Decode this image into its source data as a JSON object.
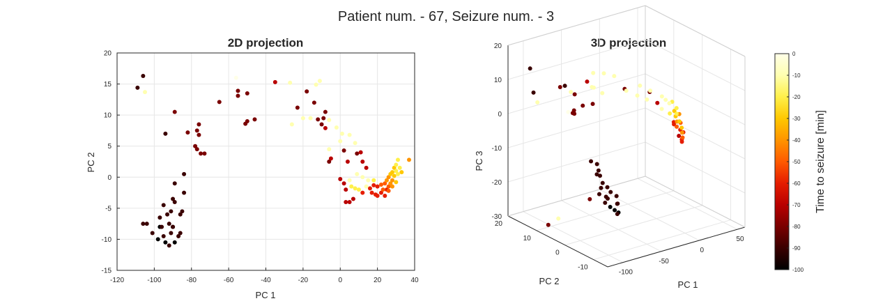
{
  "figure": {
    "suptitle": "Patient num. - 67, Seizure num. - 3"
  },
  "colormap": [
    "#000000",
    "#3a0000",
    "#7a0000",
    "#b90000",
    "#e51d00",
    "#ff5a00",
    "#ff9400",
    "#ffc800",
    "#fff04a",
    "#ffffb0",
    "#ffffe8"
  ],
  "chart_data": [
    {
      "type": "scatter",
      "title": "2D projection",
      "xlabel": "PC 1",
      "ylabel": "PC 2",
      "xlim": [
        -120,
        40
      ],
      "ylim": [
        -15,
        20
      ],
      "xticks": [
        -120,
        -100,
        -80,
        -60,
        -40,
        -20,
        0,
        20,
        40
      ],
      "yticks": [
        -15,
        -10,
        -5,
        0,
        5,
        10,
        15,
        20
      ],
      "grid": true,
      "color_by": "time_to_seizure",
      "points": [
        {
          "x": -106,
          "y": 16.3,
          "c": -90
        },
        {
          "x": -109,
          "y": 14.4,
          "c": -88
        },
        {
          "x": -105,
          "y": 13.7,
          "c": -8
        },
        {
          "x": -89,
          "y": 10.5,
          "c": -85
        },
        {
          "x": -94,
          "y": 7,
          "c": -90
        },
        {
          "x": -82,
          "y": 7.2,
          "c": -85
        },
        {
          "x": -76,
          "y": 8.5,
          "c": -80
        },
        {
          "x": -77,
          "y": 7.5,
          "c": -82
        },
        {
          "x": -76,
          "y": 6.8,
          "c": -84
        },
        {
          "x": -78,
          "y": 5,
          "c": -80
        },
        {
          "x": -77,
          "y": 4.5,
          "c": -83
        },
        {
          "x": -75,
          "y": 3.8,
          "c": -80
        },
        {
          "x": -73,
          "y": 3.8,
          "c": -82
        },
        {
          "x": -65,
          "y": 12.1,
          "c": -78
        },
        {
          "x": -56,
          "y": 16,
          "c": -5
        },
        {
          "x": -55,
          "y": 13.9,
          "c": -80
        },
        {
          "x": -55,
          "y": 13.1,
          "c": -82
        },
        {
          "x": -50,
          "y": 13.5,
          "c": -80
        },
        {
          "x": -51,
          "y": 8.6,
          "c": -85
        },
        {
          "x": -50,
          "y": 9,
          "c": -84
        },
        {
          "x": -46,
          "y": 9.3,
          "c": -80
        },
        {
          "x": -35,
          "y": 15.3,
          "c": -75
        },
        {
          "x": -27,
          "y": 15.2,
          "c": -12
        },
        {
          "x": -26,
          "y": 8.5,
          "c": -10
        },
        {
          "x": -23,
          "y": 11.2,
          "c": -76
        },
        {
          "x": -20,
          "y": 9.5,
          "c": -8
        },
        {
          "x": -18,
          "y": 13.8,
          "c": -80
        },
        {
          "x": -16,
          "y": 9.5,
          "c": -12
        },
        {
          "x": -13,
          "y": 14.9,
          "c": -10
        },
        {
          "x": -11,
          "y": 15.5,
          "c": -8
        },
        {
          "x": -14,
          "y": 12,
          "c": -78
        },
        {
          "x": -12,
          "y": 9.3,
          "c": -80
        },
        {
          "x": -10,
          "y": 8.5,
          "c": -78
        },
        {
          "x": -9,
          "y": 9.5,
          "c": -80
        },
        {
          "x": -8,
          "y": 10.5,
          "c": -76
        },
        {
          "x": -6,
          "y": 9.2,
          "c": -12
        },
        {
          "x": -2,
          "y": 8,
          "c": -10
        },
        {
          "x": 1,
          "y": 7,
          "c": -14
        },
        {
          "x": -8,
          "y": 7.9,
          "c": -75
        },
        {
          "x": -6,
          "y": 4.5,
          "c": -10
        },
        {
          "x": 0,
          "y": 5.8,
          "c": -12
        },
        {
          "x": 2,
          "y": 4.3,
          "c": -78
        },
        {
          "x": 5,
          "y": 6.8,
          "c": -12
        },
        {
          "x": 8,
          "y": 5.5,
          "c": -14
        },
        {
          "x": 9,
          "y": 3.8,
          "c": -76
        },
        {
          "x": -5,
          "y": 3,
          "c": -74
        },
        {
          "x": -6,
          "y": 2.5,
          "c": -80
        },
        {
          "x": 4,
          "y": 2.5,
          "c": -75
        },
        {
          "x": 11,
          "y": 4,
          "c": -70
        },
        {
          "x": 12,
          "y": 2.5,
          "c": -72
        },
        {
          "x": 14,
          "y": 1.5,
          "c": -74
        },
        {
          "x": -101,
          "y": -9,
          "c": -95
        },
        {
          "x": -98,
          "y": -10,
          "c": -96
        },
        {
          "x": -96,
          "y": -8,
          "c": -95
        },
        {
          "x": -95,
          "y": -9.5,
          "c": -94
        },
        {
          "x": -94,
          "y": -10.5,
          "c": -96
        },
        {
          "x": -92,
          "y": -11,
          "c": -95
        },
        {
          "x": -91,
          "y": -9,
          "c": -93
        },
        {
          "x": -90,
          "y": -8,
          "c": -95
        },
        {
          "x": -89,
          "y": -10.5,
          "c": -96
        },
        {
          "x": -87,
          "y": -9.5,
          "c": -94
        },
        {
          "x": -86,
          "y": -9,
          "c": -95
        },
        {
          "x": -97,
          "y": -6.5,
          "c": -92
        },
        {
          "x": -93,
          "y": -6,
          "c": -93
        },
        {
          "x": -91,
          "y": -5.5,
          "c": -92
        },
        {
          "x": -89,
          "y": -4,
          "c": -90
        },
        {
          "x": -86,
          "y": -6,
          "c": -94
        },
        {
          "x": -85,
          "y": -5.5,
          "c": -93
        },
        {
          "x": -84,
          "y": -2.5,
          "c": -90
        },
        {
          "x": -84,
          "y": 0.5,
          "c": -88
        },
        {
          "x": -89,
          "y": -1,
          "c": -92
        },
        {
          "x": -90,
          "y": -3.5,
          "c": -91
        },
        {
          "x": -95,
          "y": -4.5,
          "c": -92
        },
        {
          "x": -104,
          "y": -7.5,
          "c": -92
        },
        {
          "x": -106,
          "y": -7.5,
          "c": -90
        },
        {
          "x": -97,
          "y": -8,
          "c": -96
        },
        {
          "x": -92,
          "y": -7.5,
          "c": -95
        },
        {
          "x": -90,
          "y": -8,
          "c": -96
        },
        {
          "x": 0,
          "y": -0.3,
          "c": -72
        },
        {
          "x": 2,
          "y": -1,
          "c": -68
        },
        {
          "x": 3,
          "y": -2,
          "c": -70
        },
        {
          "x": 3,
          "y": -4,
          "c": -75
        },
        {
          "x": 5,
          "y": -4,
          "c": -72
        },
        {
          "x": 7,
          "y": -3.5,
          "c": -70
        },
        {
          "x": 5,
          "y": -0.5,
          "c": -15
        },
        {
          "x": 6,
          "y": -1.5,
          "c": -20
        },
        {
          "x": 8,
          "y": -1.8,
          "c": -18
        },
        {
          "x": 10,
          "y": -2,
          "c": -22
        },
        {
          "x": 12,
          "y": -2.5,
          "c": -65
        },
        {
          "x": 14,
          "y": -1.5,
          "c": -15
        },
        {
          "x": 16,
          "y": -1.8,
          "c": -60
        },
        {
          "x": 17,
          "y": -2.5,
          "c": -62
        },
        {
          "x": 19,
          "y": -2.8,
          "c": -65
        },
        {
          "x": 20,
          "y": -3,
          "c": -60
        },
        {
          "x": 22,
          "y": -2.5,
          "c": -58
        },
        {
          "x": 23,
          "y": -2,
          "c": -55
        },
        {
          "x": 24,
          "y": -3,
          "c": -62
        },
        {
          "x": 25,
          "y": -2,
          "c": -58
        },
        {
          "x": 26,
          "y": -1.5,
          "c": -50
        },
        {
          "x": 27,
          "y": -1,
          "c": -45
        },
        {
          "x": 28,
          "y": -0.5,
          "c": -40
        },
        {
          "x": 29,
          "y": 0.2,
          "c": -30
        },
        {
          "x": 30,
          "y": 1,
          "c": -25
        },
        {
          "x": 30,
          "y": 2,
          "c": -22
        },
        {
          "x": 31,
          "y": 2.8,
          "c": -25
        },
        {
          "x": 29,
          "y": 1.5,
          "c": -28
        },
        {
          "x": 28,
          "y": 0.8,
          "c": -32
        },
        {
          "x": 27,
          "y": 0.5,
          "c": -35
        },
        {
          "x": 26,
          "y": 0,
          "c": -38
        },
        {
          "x": 25,
          "y": -0.5,
          "c": -42
        },
        {
          "x": 24,
          "y": -1,
          "c": -48
        },
        {
          "x": 22,
          "y": -1.2,
          "c": -52
        },
        {
          "x": 20,
          "y": -1.5,
          "c": -56
        },
        {
          "x": 18,
          "y": -1.3,
          "c": -58
        },
        {
          "x": 31,
          "y": 0.5,
          "c": -24
        },
        {
          "x": 32,
          "y": 1.5,
          "c": -20
        },
        {
          "x": 33,
          "y": 0.8,
          "c": -30
        },
        {
          "x": 37,
          "y": 2.8,
          "c": -45
        },
        {
          "x": 30,
          "y": -0.8,
          "c": -35
        },
        {
          "x": 28,
          "y": -1.5,
          "c": -40
        },
        {
          "x": 26,
          "y": -2.2,
          "c": -50
        },
        {
          "x": 9,
          "y": 0.5,
          "c": -10
        },
        {
          "x": 12,
          "y": 0,
          "c": -12
        },
        {
          "x": 15,
          "y": -0.5,
          "c": -14
        },
        {
          "x": 18,
          "y": -0.5,
          "c": -20
        }
      ]
    },
    {
      "type": "scatter3d",
      "title": "3D projection",
      "xlabel": "PC 1",
      "ylabel": "PC 2",
      "zlabel": "PC 3",
      "xlim": [
        -120,
        60
      ],
      "ylim": [
        -15,
        20
      ],
      "zlim": [
        -30,
        20
      ],
      "xticks": [
        -100,
        -50,
        0,
        50
      ],
      "yticks": [
        -10,
        0,
        10,
        20
      ],
      "zticks": [
        -30,
        -20,
        -10,
        0,
        10,
        20
      ],
      "grid": true,
      "color_by": "time_to_seizure",
      "points": [
        {
          "x": -106,
          "y": 16,
          "z": 14,
          "c": -90
        },
        {
          "x": -109,
          "y": 14,
          "z": 8,
          "c": -88
        },
        {
          "x": -105,
          "y": 13.7,
          "z": 5,
          "c": -8
        },
        {
          "x": -89,
          "y": 10,
          "z": 10,
          "c": -85
        },
        {
          "x": -94,
          "y": 7,
          "z": 12,
          "c": -90
        },
        {
          "x": -82,
          "y": 7,
          "z": 4,
          "c": -85
        },
        {
          "x": -76,
          "y": 8.5,
          "z": 2,
          "c": -80
        },
        {
          "x": -78,
          "y": 5,
          "z": 6,
          "c": -80
        },
        {
          "x": -65,
          "y": 12,
          "z": 0,
          "c": -78
        },
        {
          "x": -56,
          "y": 16,
          "z": -2,
          "c": -5
        },
        {
          "x": -55,
          "y": 14,
          "z": 4,
          "c": -80
        },
        {
          "x": -50,
          "y": 9,
          "z": 3,
          "c": -85
        },
        {
          "x": -35,
          "y": 15,
          "z": 6,
          "c": -75
        },
        {
          "x": -27,
          "y": 15,
          "z": 8,
          "c": -12
        },
        {
          "x": -20,
          "y": 9.5,
          "z": 9,
          "c": -8
        },
        {
          "x": -13,
          "y": 15,
          "z": 7,
          "c": -10
        },
        {
          "x": -10,
          "y": 8.5,
          "z": 5,
          "c": -78
        },
        {
          "x": -6,
          "y": 9,
          "z": 4,
          "c": -12
        },
        {
          "x": 1,
          "y": 7,
          "z": 3,
          "c": -14
        },
        {
          "x": 8,
          "y": 5.5,
          "z": 2,
          "c": -14
        },
        {
          "x": -60,
          "y": 14,
          "z": 5,
          "c": -12
        },
        {
          "x": -45,
          "y": 10,
          "z": 7,
          "c": -10
        },
        {
          "x": -40,
          "y": 12,
          "z": 6,
          "c": -8
        },
        {
          "x": -30,
          "y": 11,
          "z": 4,
          "c": -15
        },
        {
          "x": -101,
          "y": -9,
          "z": -15,
          "c": -95
        },
        {
          "x": -98,
          "y": -10,
          "z": -16,
          "c": -96
        },
        {
          "x": -96,
          "y": -8,
          "z": -14,
          "c": -95
        },
        {
          "x": -94,
          "y": -10.5,
          "z": -17,
          "c": -96
        },
        {
          "x": -92,
          "y": -11,
          "z": -15,
          "c": -95
        },
        {
          "x": -90,
          "y": -8,
          "z": -13,
          "c": -95
        },
        {
          "x": -89,
          "y": -10.5,
          "z": -18,
          "c": -96
        },
        {
          "x": -87,
          "y": -9.5,
          "z": -16,
          "c": -94
        },
        {
          "x": -86,
          "y": -9,
          "z": -14,
          "c": -95
        },
        {
          "x": -97,
          "y": -6.5,
          "z": -12,
          "c": -92
        },
        {
          "x": -93,
          "y": -6,
          "z": -11,
          "c": -93
        },
        {
          "x": -89,
          "y": -4,
          "z": -10,
          "c": -90
        },
        {
          "x": -85,
          "y": -5.5,
          "z": -13,
          "c": -93
        },
        {
          "x": -84,
          "y": 0.5,
          "z": -8,
          "c": -88
        },
        {
          "x": -104,
          "y": -7.5,
          "z": -6,
          "c": -92
        },
        {
          "x": -106,
          "y": -7.5,
          "z": -4,
          "c": -90
        },
        {
          "x": -92,
          "y": -7.5,
          "z": -15,
          "c": -95
        },
        {
          "x": -95,
          "y": -4.5,
          "z": -9,
          "c": -92
        },
        {
          "x": -110,
          "y": 5,
          "z": -25,
          "c": -10
        },
        {
          "x": -112,
          "y": 8,
          "z": -28,
          "c": -85
        },
        {
          "x": -80,
          "y": 2,
          "z": -20,
          "c": -85
        },
        {
          "x": -70,
          "y": -5,
          "z": -22,
          "c": -90
        },
        {
          "x": -75,
          "y": 0,
          "z": -18,
          "c": -88
        },
        {
          "x": 0,
          "y": -0.3,
          "z": 4,
          "c": -72
        },
        {
          "x": 5,
          "y": -0.5,
          "z": 2,
          "c": -15
        },
        {
          "x": 10,
          "y": -2,
          "z": 1,
          "c": -22
        },
        {
          "x": 16,
          "y": -1.8,
          "z": -2,
          "c": -60
        },
        {
          "x": 20,
          "y": -3,
          "z": -4,
          "c": -60
        },
        {
          "x": 24,
          "y": -3,
          "z": -5,
          "c": -62
        },
        {
          "x": 26,
          "y": -1.5,
          "z": -3,
          "c": -50
        },
        {
          "x": 28,
          "y": -0.5,
          "z": -1,
          "c": -40
        },
        {
          "x": 30,
          "y": 1,
          "z": 0,
          "c": -25
        },
        {
          "x": 31,
          "y": 2.8,
          "z": 1,
          "c": -25
        },
        {
          "x": 29,
          "y": 1.5,
          "z": -1,
          "c": -28
        },
        {
          "x": 27,
          "y": 0.5,
          "z": -2,
          "c": -35
        },
        {
          "x": 25,
          "y": -0.5,
          "z": -3,
          "c": -42
        },
        {
          "x": 22,
          "y": -1.2,
          "z": -4,
          "c": -52
        },
        {
          "x": 18,
          "y": -1.3,
          "z": -3,
          "c": -58
        },
        {
          "x": 32,
          "y": 1.5,
          "z": -2,
          "c": -20
        },
        {
          "x": 33,
          "y": 0.8,
          "z": -4,
          "c": -30
        },
        {
          "x": 30,
          "y": -0.8,
          "z": -5,
          "c": -35
        },
        {
          "x": 28,
          "y": -1.5,
          "z": -6,
          "c": -40
        },
        {
          "x": 26,
          "y": -2.2,
          "z": -7,
          "c": -50
        },
        {
          "x": 24,
          "y": -2.5,
          "z": -8,
          "c": -60
        },
        {
          "x": 22,
          "y": -3,
          "z": -7,
          "c": -65
        },
        {
          "x": 20,
          "y": -2.5,
          "z": -6,
          "c": -70
        },
        {
          "x": 9,
          "y": 0.5,
          "z": 5,
          "c": -10
        },
        {
          "x": 12,
          "y": 0,
          "z": 4,
          "c": -12
        },
        {
          "x": 15,
          "y": -0.5,
          "z": 3,
          "c": -14
        },
        {
          "x": 3,
          "y": 3,
          "z": 6,
          "c": -10
        },
        {
          "x": -3,
          "y": 5,
          "z": 7,
          "c": -8
        },
        {
          "x": 6,
          "y": 4,
          "z": 5,
          "c": -76
        }
      ]
    }
  ],
  "colorbar": {
    "label": "Time to seizure [min]",
    "ticks": [
      0,
      -10,
      -20,
      -30,
      -40,
      -50,
      -60,
      -70,
      -80,
      -90,
      -100
    ],
    "range": [
      -100,
      0
    ]
  }
}
